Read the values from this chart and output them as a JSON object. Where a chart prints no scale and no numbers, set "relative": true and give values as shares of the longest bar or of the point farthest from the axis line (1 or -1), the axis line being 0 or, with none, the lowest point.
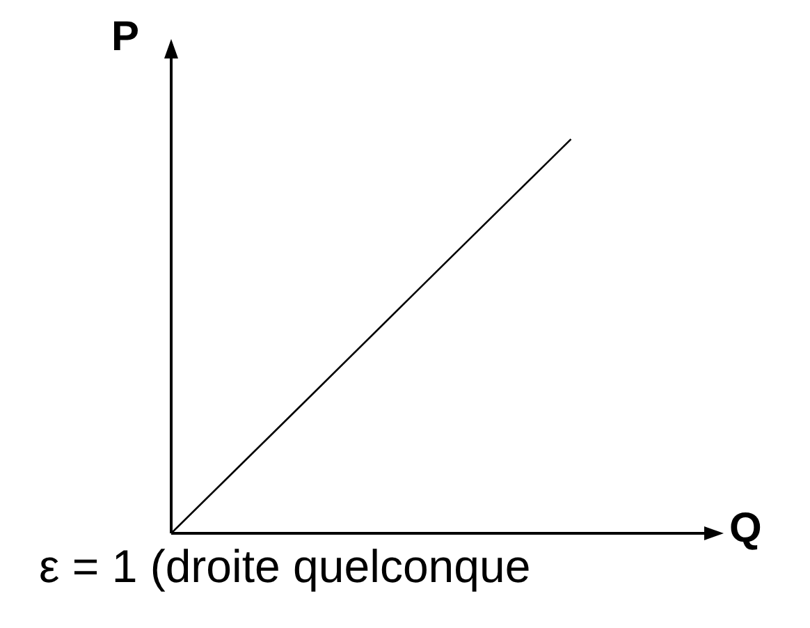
{
  "chart_data": {
    "type": "line",
    "relative": true,
    "xlabel": "Q",
    "ylabel": "P",
    "annotations": [
      "ε = 1 (droite quelconque"
    ],
    "categories": [
      null,
      null,
      null,
      null,
      null
    ],
    "series": [
      {
        "color": "#000000",
        "values": [
          0,
          0.333,
          0.667,
          1,
          null
        ]
      }
    ],
    "legend": false,
    "marker": "none",
    "line_style": "solid"
  }
}
